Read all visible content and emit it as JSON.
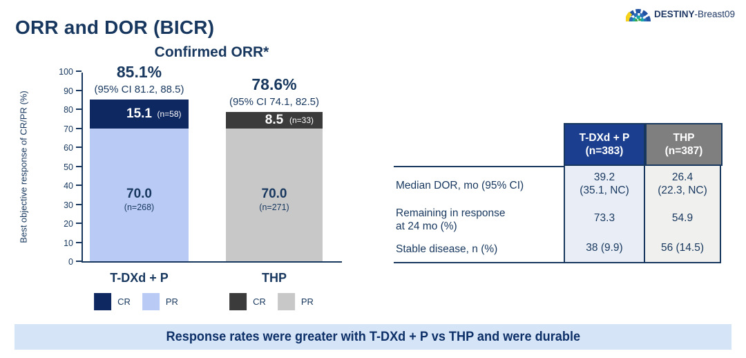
{
  "logo": {
    "study_bold": "DESTINY",
    "study_rest": "-Breast09"
  },
  "title": "ORR and DOR (BICR)",
  "colors": {
    "navy_text": "#17375E",
    "cr_tdxd": "#0E2861",
    "pr_tdxd": "#B9CBF5",
    "cr_thp": "#3B3B3B",
    "pr_thp": "#C8C8C8",
    "table_header_blue": "#1B3E8F",
    "table_header_gray": "#7F7F7F",
    "table_body_blue": "#E9EEF6",
    "table_body_gray": "#F0F0EE",
    "banner_bg": "#D6E4F7"
  },
  "chart_data": {
    "type": "bar",
    "stacked": true,
    "title": "Confirmed ORR*",
    "ylabel": "Best objective response of CR/PR (%)",
    "ylim": [
      0,
      100
    ],
    "yticks": [
      0,
      10,
      20,
      30,
      40,
      50,
      60,
      70,
      80,
      90,
      100
    ],
    "categories": [
      "T-DXd + P",
      "THP"
    ],
    "series": [
      {
        "name": "PR",
        "values": [
          70.0,
          70.0
        ]
      },
      {
        "name": "CR",
        "values": [
          15.1,
          8.5
        ]
      }
    ],
    "bars": [
      {
        "category": "T-DXd + P",
        "orr_label": "85.1%",
        "ci_label": "(95% CI 81.2, 88.5)",
        "cr": {
          "value": 15.1,
          "label": "15.1",
          "n_label": "(n=58)",
          "color": "#0E2861",
          "text_color": "#FFFFFF"
        },
        "pr": {
          "value": 70.0,
          "label": "70.0",
          "n_label": "(n=268)",
          "color": "#B9CBF5",
          "text_color": "#17375E"
        }
      },
      {
        "category": "THP",
        "orr_label": "78.6%",
        "ci_label": "(95% CI 74.1, 82.5)",
        "cr": {
          "value": 8.5,
          "label": "8.5",
          "n_label": "(n=33)",
          "color": "#3B3B3B",
          "text_color": "#FFFFFF"
        },
        "pr": {
          "value": 70.0,
          "label": "70.0",
          "n_label": "(n=271)",
          "color": "#C8C8C8",
          "text_color": "#17375E"
        }
      }
    ],
    "legends": [
      {
        "items": [
          {
            "label": "CR",
            "color": "#0E2861"
          },
          {
            "label": "PR",
            "color": "#B9CBF5"
          }
        ]
      },
      {
        "items": [
          {
            "label": "CR",
            "color": "#3B3B3B"
          },
          {
            "label": "PR",
            "color": "#C8C8C8"
          }
        ]
      }
    ],
    "legend_position": "below"
  },
  "table": {
    "columns": [
      {
        "title": "T-DXd + P\n(n=383)",
        "header_bg": "#1B3E8F",
        "body_bg": "#E9EEF6"
      },
      {
        "title": "THP\n(n=387)",
        "header_bg": "#7F7F7F",
        "body_bg": "#F0F0EE"
      }
    ],
    "rows": [
      {
        "label": "Median DOR, mo (95% CI)",
        "values": [
          "39.2\n(35.1, NC)",
          "26.4\n(22.3, NC)"
        ]
      },
      {
        "label": "Remaining in response\nat 24 mo (%)",
        "values": [
          "73.3",
          "54.9"
        ]
      },
      {
        "label": "Stable disease, n (%)",
        "values": [
          "38 (9.9)",
          "56 (14.5)"
        ]
      }
    ]
  },
  "banner": {
    "text": "Response rates were greater with T-DXd + P vs THP and were durable"
  }
}
